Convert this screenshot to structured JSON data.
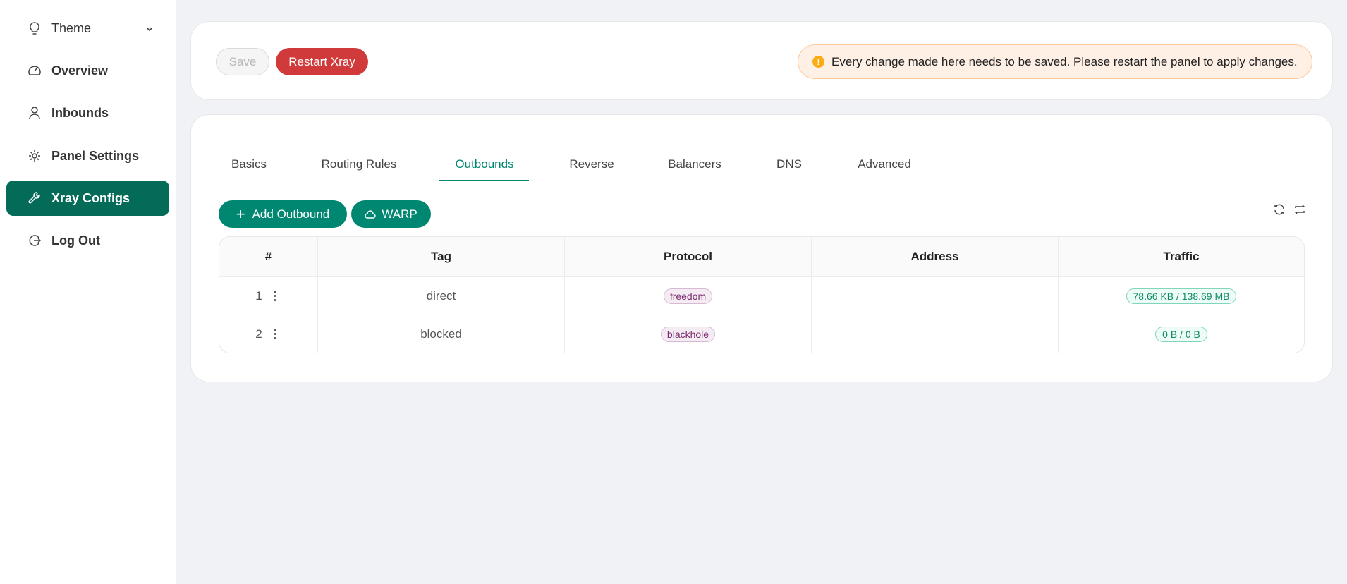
{
  "sidebar": {
    "items": [
      {
        "label": "Theme",
        "icon": "bulb-icon"
      },
      {
        "label": "Overview",
        "icon": "dashboard-icon"
      },
      {
        "label": "Inbounds",
        "icon": "user-icon"
      },
      {
        "label": "Panel Settings",
        "icon": "gear-icon"
      },
      {
        "label": "Xray Configs",
        "icon": "wrench-icon",
        "active": true
      },
      {
        "label": "Log Out",
        "icon": "logout-icon"
      }
    ]
  },
  "toolbar": {
    "save_label": "Save",
    "restart_label": "Restart Xray",
    "alert": "Every change made here needs to be saved. Please restart the panel to apply changes."
  },
  "tabs": [
    "Basics",
    "Routing Rules",
    "Outbounds",
    "Reverse",
    "Balancers",
    "DNS",
    "Advanced"
  ],
  "active_tab": "Outbounds",
  "actions": {
    "add_label": "Add Outbound",
    "warp_label": "WARP"
  },
  "table": {
    "headers": [
      "#",
      "Tag",
      "Protocol",
      "Address",
      "Traffic"
    ],
    "rows": [
      {
        "index": "1",
        "tag": "direct",
        "protocol": "freedom",
        "address": "",
        "traffic": "78.66 KB / 138.69 MB"
      },
      {
        "index": "2",
        "tag": "blocked",
        "protocol": "blackhole",
        "address": "",
        "traffic": "0 B / 0 B"
      }
    ]
  },
  "colors": {
    "accent": "#008771",
    "sidebar_active": "#036b58",
    "danger": "#d13a3a"
  }
}
